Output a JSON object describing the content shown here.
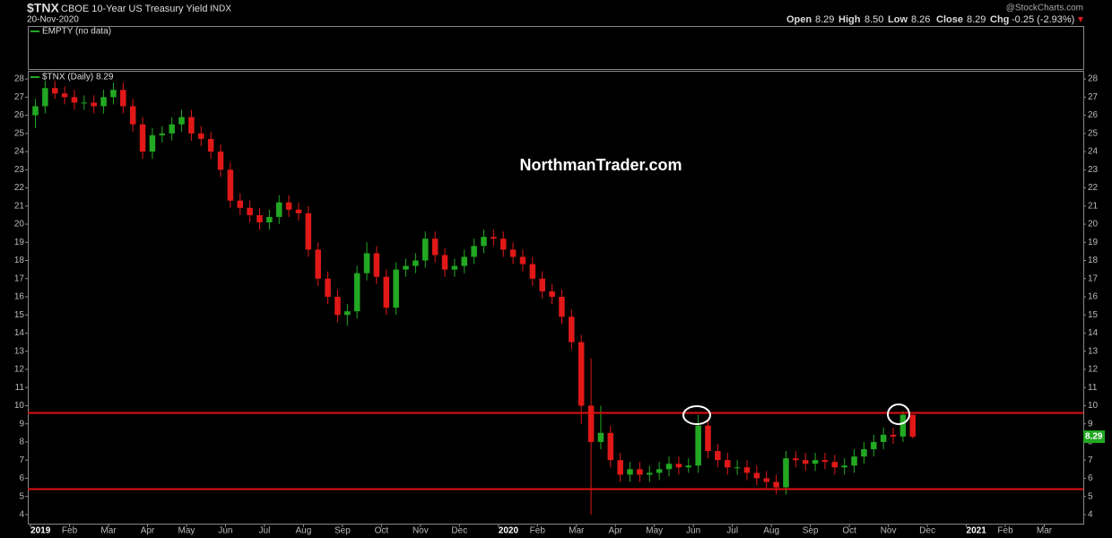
{
  "header": {
    "symbol": "$TNX",
    "name": "CBOE 10-Year US Treasury Yield",
    "exchange": "INDX",
    "date": "20-Nov-2020",
    "source": "@StockCharts.com",
    "quote": {
      "open_label": "Open",
      "open": "8.29",
      "high_label": "High",
      "high": "8.50",
      "low_label": "Low",
      "low": "8.26",
      "close_label": "Close",
      "close": "8.29",
      "chg_label": "Chg",
      "chg": "-0.25 (-2.93%)"
    },
    "upper_panel": "EMPTY (no data)"
  },
  "chart_data": {
    "type": "candlestick",
    "title": "$TNX (Daily) 8.29",
    "watermark": "NorthmanTrader.com",
    "up_color": "#22a822",
    "down_color": "#e01818",
    "reference_color": "#e01010",
    "x": [
      0.125,
      0.375,
      0.625,
      0.875,
      1.125,
      1.375,
      1.625,
      1.875,
      2.125,
      2.375,
      2.625,
      2.875,
      3.125,
      3.375,
      3.625,
      3.875,
      4.125,
      4.375,
      4.625,
      4.875,
      5.125,
      5.375,
      5.625,
      5.875,
      6.125,
      6.375,
      6.625,
      6.875,
      7.125,
      7.375,
      7.625,
      7.875,
      8.125,
      8.375,
      8.625,
      8.875,
      9.125,
      9.375,
      9.625,
      9.875,
      10.125,
      10.375,
      10.625,
      10.875,
      11.125,
      11.375,
      11.625,
      11.875,
      12.125,
      12.375,
      12.625,
      12.875,
      13.125,
      13.375,
      13.625,
      13.875,
      14.125,
      14.375,
      14.625,
      14.875,
      15.125,
      15.375,
      15.625,
      15.875,
      16.125,
      16.375,
      16.625,
      16.875,
      17.125,
      17.375,
      17.625,
      17.875,
      18.125,
      18.375,
      18.625,
      18.875,
      19.125,
      19.375,
      19.625,
      19.875,
      20.125,
      20.375,
      20.625,
      20.875,
      21.125,
      21.375,
      21.625,
      21.875,
      22.125,
      22.375,
      22.625
    ],
    "open": [
      26.0,
      26.5,
      27.5,
      27.2,
      27.0,
      26.7,
      26.7,
      26.5,
      27.0,
      27.4,
      26.5,
      25.5,
      24.0,
      24.9,
      25.0,
      25.5,
      25.9,
      25.0,
      24.7,
      24.0,
      23.0,
      21.3,
      20.9,
      20.5,
      20.1,
      20.4,
      21.2,
      20.8,
      20.6,
      18.6,
      17.0,
      16.0,
      15.0,
      15.2,
      17.3,
      18.4,
      17.1,
      15.4,
      17.5,
      17.7,
      18.0,
      19.2,
      18.3,
      17.5,
      17.7,
      18.2,
      18.8,
      19.3,
      19.2,
      18.6,
      18.2,
      17.8,
      17.0,
      16.3,
      16.0,
      14.9,
      13.5,
      10.0,
      8.0,
      8.5,
      7.0,
      6.2,
      6.5,
      6.2,
      6.3,
      6.5,
      6.8,
      6.6,
      6.7,
      8.9,
      7.5,
      7.0,
      6.6,
      6.6,
      6.3,
      6.0,
      5.8,
      5.5,
      7.1,
      7.0,
      6.8,
      7.0,
      6.9,
      6.6,
      6.7,
      7.2,
      7.6,
      8.0,
      8.4,
      8.3,
      9.5
    ],
    "high": [
      26.9,
      27.9,
      27.9,
      27.6,
      27.4,
      27.1,
      27.1,
      27.4,
      27.8,
      27.8,
      26.9,
      25.9,
      25.3,
      25.4,
      25.9,
      26.3,
      26.3,
      25.4,
      25.1,
      24.4,
      23.4,
      21.7,
      21.3,
      20.9,
      20.8,
      21.6,
      21.6,
      21.2,
      21.0,
      19.0,
      17.4,
      16.4,
      15.6,
      17.7,
      19.0,
      18.8,
      17.5,
      17.9,
      18.1,
      18.4,
      19.6,
      19.6,
      18.7,
      18.1,
      18.6,
      19.2,
      19.7,
      19.7,
      19.6,
      19.0,
      18.6,
      18.2,
      17.4,
      16.7,
      16.4,
      15.3,
      13.9,
      12.6,
      10.0,
      8.9,
      7.4,
      6.9,
      6.9,
      6.7,
      6.9,
      7.2,
      7.2,
      7.1,
      9.5,
      9.3,
      7.9,
      7.4,
      7.0,
      7.0,
      6.7,
      6.4,
      6.2,
      7.5,
      7.5,
      7.4,
      7.4,
      7.4,
      7.3,
      7.1,
      7.6,
      8.0,
      8.4,
      8.8,
      8.8,
      9.7,
      9.5
    ],
    "low": [
      25.3,
      26.1,
      26.9,
      26.6,
      26.3,
      26.3,
      26.1,
      26.1,
      26.6,
      26.1,
      25.1,
      23.6,
      23.6,
      24.5,
      24.6,
      25.1,
      24.6,
      24.3,
      23.6,
      22.6,
      20.9,
      20.5,
      20.1,
      19.7,
      19.7,
      20.0,
      20.4,
      20.2,
      18.2,
      16.6,
      15.6,
      14.6,
      14.4,
      14.8,
      16.9,
      16.7,
      15.0,
      15.0,
      17.1,
      17.3,
      17.6,
      17.9,
      17.1,
      17.1,
      17.3,
      17.8,
      18.4,
      18.8,
      18.2,
      17.8,
      17.4,
      16.6,
      15.9,
      15.6,
      14.5,
      13.1,
      9.0,
      4.0,
      7.6,
      6.6,
      5.8,
      5.8,
      5.8,
      5.8,
      5.9,
      6.1,
      6.2,
      6.3,
      6.3,
      7.1,
      6.6,
      6.2,
      6.2,
      5.9,
      5.6,
      5.4,
      5.1,
      5.1,
      6.6,
      6.4,
      6.4,
      6.5,
      6.2,
      6.2,
      6.3,
      6.8,
      7.2,
      7.6,
      7.9,
      8.0,
      8.2
    ],
    "close": [
      26.5,
      27.5,
      27.2,
      27.0,
      26.7,
      26.7,
      26.5,
      27.0,
      27.4,
      26.5,
      25.5,
      24.0,
      24.9,
      25.0,
      25.5,
      25.9,
      25.0,
      24.7,
      24.0,
      23.0,
      21.3,
      20.9,
      20.5,
      20.1,
      20.4,
      21.2,
      20.8,
      20.6,
      18.6,
      17.0,
      16.0,
      15.0,
      15.2,
      17.3,
      18.4,
      17.1,
      15.4,
      17.5,
      17.7,
      18.0,
      19.2,
      18.3,
      17.5,
      17.7,
      18.2,
      18.8,
      19.3,
      19.2,
      18.6,
      18.2,
      17.8,
      17.0,
      16.3,
      16.0,
      14.9,
      13.5,
      10.0,
      8.0,
      8.5,
      7.0,
      6.2,
      6.5,
      6.2,
      6.3,
      6.5,
      6.8,
      6.6,
      6.7,
      8.9,
      7.5,
      7.0,
      6.6,
      6.6,
      6.3,
      6.0,
      5.8,
      5.5,
      7.1,
      7.0,
      6.8,
      7.0,
      6.9,
      6.6,
      6.7,
      7.2,
      7.6,
      8.0,
      8.4,
      8.3,
      9.5,
      8.29
    ],
    "reference_lines": [
      9.6,
      5.4
    ],
    "xlim": [
      -0.07,
      27.0
    ],
    "xticks": [
      {
        "value": 0,
        "label": "2019"
      },
      {
        "value": 1,
        "label": "Feb"
      },
      {
        "value": 2,
        "label": "Mar"
      },
      {
        "value": 3,
        "label": "Apr"
      },
      {
        "value": 4,
        "label": "May"
      },
      {
        "value": 5,
        "label": "Jun"
      },
      {
        "value": 6,
        "label": "Jul"
      },
      {
        "value": 7,
        "label": "Aug"
      },
      {
        "value": 8,
        "label": "Sep"
      },
      {
        "value": 9,
        "label": "Oct"
      },
      {
        "value": 10,
        "label": "Nov"
      },
      {
        "value": 11,
        "label": "Dec"
      },
      {
        "value": 12,
        "label": "2020"
      },
      {
        "value": 13,
        "label": "Feb"
      },
      {
        "value": 14,
        "label": "Mar"
      },
      {
        "value": 15,
        "label": "Apr"
      },
      {
        "value": 16,
        "label": "May"
      },
      {
        "value": 17,
        "label": "Jun"
      },
      {
        "value": 18,
        "label": "Jul"
      },
      {
        "value": 19,
        "label": "Aug"
      },
      {
        "value": 20,
        "label": "Sep"
      },
      {
        "value": 21,
        "label": "Oct"
      },
      {
        "value": 22,
        "label": "Nov"
      },
      {
        "value": 23,
        "label": "Dec"
      },
      {
        "value": 24,
        "label": "2021"
      },
      {
        "value": 25,
        "label": "Feb"
      },
      {
        "value": 26,
        "label": "Mar"
      }
    ],
    "ylim": [
      3.5,
      28.4
    ],
    "yticks": [
      4,
      5,
      6,
      7,
      8,
      9,
      10,
      11,
      12,
      13,
      14,
      15,
      16,
      17,
      18,
      19,
      20,
      21,
      22,
      23,
      24,
      25,
      26,
      27,
      28
    ]
  }
}
